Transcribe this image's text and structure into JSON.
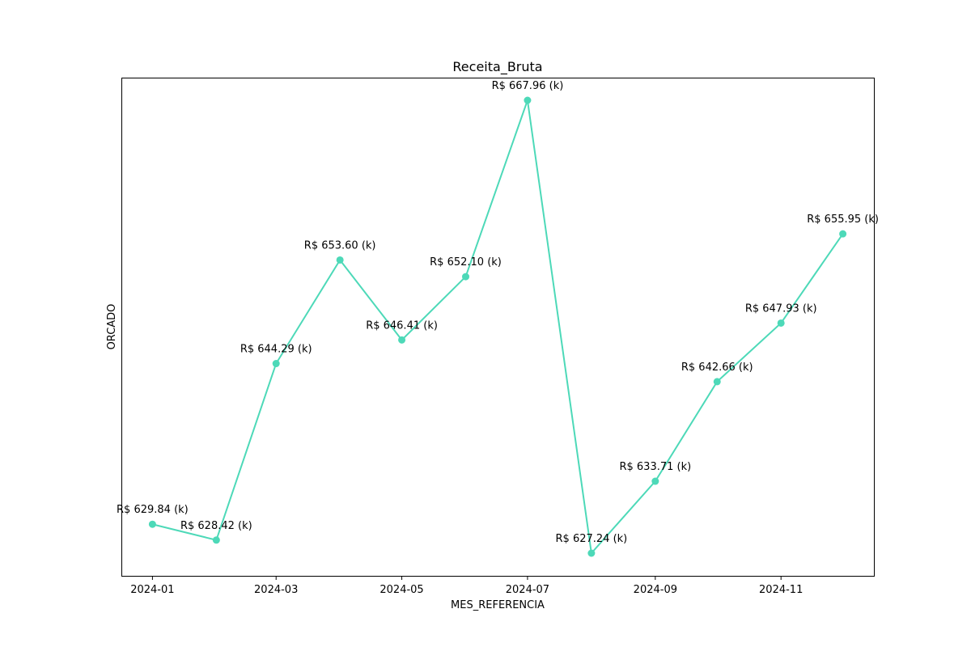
{
  "chart_data": {
    "type": "line",
    "title": "Receita_Bruta",
    "xlabel": "MES_REFERENCIA",
    "ylabel": "ORCADO",
    "x": [
      "2024-01",
      "2024-02",
      "2024-03",
      "2024-04",
      "2024-05",
      "2024-06",
      "2024-07",
      "2024-08",
      "2024-09",
      "2024-10",
      "2024-11",
      "2024-12"
    ],
    "values": [
      629.84,
      628.42,
      644.29,
      653.6,
      646.41,
      652.1,
      667.96,
      627.24,
      633.71,
      642.66,
      647.93,
      655.95
    ],
    "labels": [
      "R$ 629.84 (k)",
      "R$ 628.42 (k)",
      "R$ 644.29 (k)",
      "R$ 653.60 (k)",
      "R$ 646.41 (k)",
      "R$ 652.10 (k)",
      "R$ 667.96 (k)",
      "R$ 627.24 (k)",
      "R$ 633.71 (k)",
      "R$ 642.66 (k)",
      "R$ 647.93 (k)",
      "R$ 655.95 (k)"
    ],
    "xticks": [
      "2024-01",
      "2024-03",
      "2024-05",
      "2024-07",
      "2024-09",
      "2024-11"
    ],
    "yticks": [],
    "grid": false,
    "line_color": "#4dd9b8"
  }
}
